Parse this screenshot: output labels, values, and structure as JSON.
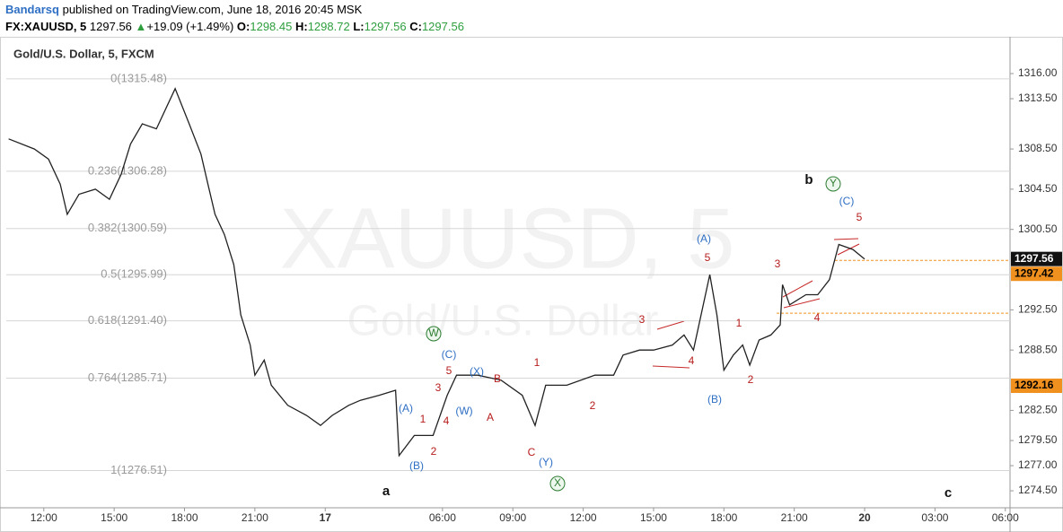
{
  "header": {
    "publisher": "Bandarsq",
    "published": "published on TradingView.com, June 18, 2016 20:45 MSK",
    "symbol": "FX:XAUUSD, 5",
    "last": 1297.56,
    "change": "+19.09 (+1.49%)",
    "ohlc": [
      {
        "key": "O:",
        "value": 1298.45
      },
      {
        "key": "H:",
        "value": 1298.72
      },
      {
        "key": "L:",
        "value": 1297.56
      },
      {
        "key": "C:",
        "value": 1297.56
      }
    ]
  },
  "chart_data": {
    "type": "line",
    "title": "Gold/U.S. Dollar, 5, FXCM",
    "watermark": [
      "XAUUSD, 5",
      "Gold/U.S. Dollar"
    ],
    "color": "#222222",
    "x": [
      -1.5,
      -0.4,
      0.2,
      0.7,
      1,
      1.5,
      2.2,
      2.8,
      3.3,
      3.7,
      4.2,
      4.8,
      5.6,
      6.2,
      6.7,
      7,
      7.3,
      7.7,
      8.1,
      8.4,
      8.8,
      9,
      9.4,
      9.7,
      10.4,
      11.2,
      11.8,
      12.3,
      13,
      13.5,
      14.3,
      15,
      15.15,
      15.8,
      16.6,
      17.2,
      17.6,
      18.5,
      19.5,
      20.4,
      20.95,
      21.4,
      22.3,
      23.5,
      24.3,
      24.7,
      25.4,
      26,
      26.8,
      27.3,
      27.7,
      28.4,
      28.7,
      29,
      29.4,
      29.8,
      30.1,
      30.5,
      31,
      31.4,
      31.5,
      31.8,
      32.5,
      33,
      33.5,
      33.9,
      34.5,
      35
    ],
    "values": [
      1309.5,
      1308.5,
      1307.5,
      1305,
      1302,
      1304,
      1304.5,
      1303.5,
      1306,
      1309,
      1311,
      1310.5,
      1314.5,
      1311,
      1308,
      1305,
      1302,
      1300,
      1297,
      1292,
      1289,
      1286,
      1287.5,
      1285,
      1283,
      1282,
      1281,
      1282,
      1283,
      1283.5,
      1284,
      1284.5,
      1278,
      1280,
      1280,
      1284,
      1286,
      1286,
      1285.5,
      1284,
      1281,
      1285,
      1285,
      1286,
      1286,
      1288,
      1288.5,
      1288.5,
      1289,
      1290,
      1288.5,
      1296,
      1292,
      1286.5,
      1288,
      1289,
      1287,
      1289.5,
      1290,
      1291,
      1295,
      1293,
      1294,
      1294,
      1295.5,
      1299,
      1298.5,
      1297.56
    ],
    "xlim": [
      -1.6,
      41.2
    ],
    "ylim": [
      1272.9,
      1317.25
    ],
    "xticks": [
      {
        "value": 0,
        "label": "12:00"
      },
      {
        "value": 3,
        "label": "15:00"
      },
      {
        "value": 6,
        "label": "18:00"
      },
      {
        "value": 9,
        "label": "21:00"
      },
      12,
      {
        "value": 17,
        "label": "06:00"
      },
      {
        "value": 20,
        "label": "09:00"
      },
      {
        "value": 23,
        "label": "12:00"
      },
      {
        "value": 26,
        "label": "15:00"
      },
      {
        "value": 29,
        "label": "18:00"
      },
      {
        "value": 32,
        "label": "21:00"
      },
      35,
      {
        "value": 38,
        "label": "03:00"
      },
      {
        "value": 41,
        "label": "06:00"
      }
    ],
    "xtick_texts": {
      "12": "17",
      "35": "20"
    },
    "yticks": [
      {
        "value": 1316,
        "label": "1316.00"
      },
      {
        "value": 1313.5,
        "label": "1313.50"
      },
      {
        "value": 1308.5,
        "label": "1308.50"
      },
      {
        "value": 1304.5,
        "label": "1304.50"
      },
      {
        "value": 1300.5,
        "label": "1300.50"
      },
      {
        "value": 1292.5,
        "label": "1292.50"
      },
      {
        "value": 1288.5,
        "label": "1288.50"
      },
      {
        "value": 1282.5,
        "label": "1282.50"
      },
      {
        "value": 1279.5,
        "label": "1279.50"
      },
      {
        "value": 1277,
        "label": "1277.00"
      },
      {
        "value": 1274.5,
        "label": "1274.50"
      }
    ],
    "fib_levels": [
      {
        "label": "0(1315.48)",
        "value": 1315.48
      },
      {
        "label": "0.236(1306.28)",
        "value": 1306.28
      },
      {
        "label": "0.382(1300.59)",
        "value": 1300.59
      },
      {
        "label": "0.5(1295.99)",
        "value": 1295.99
      },
      {
        "label": "0.618(1291.40)",
        "value": 1291.4
      },
      {
        "label": "0.764(1285.71)",
        "value": 1285.71
      },
      {
        "label": "1(1276.51)",
        "value": 1276.51
      }
    ],
    "price_lines": [
      {
        "value": 1297.42,
        "color": "#f0901e"
      },
      {
        "value": 1292.16,
        "color": "#f0901e"
      }
    ],
    "annotations": [
      {
        "text": "(A)",
        "color": "#2f6fc4"
      },
      {
        "text": "(B)",
        "color": "#2f6fc4"
      },
      {
        "text": "(C)",
        "color": "#2f6fc4"
      },
      {
        "text": "(X)",
        "color": "#2f6fc4"
      },
      {
        "text": "(W)",
        "color": "#2f6fc4"
      },
      {
        "text": "(Y)",
        "color": "#2f6fc4"
      },
      {
        "text": "(A)",
        "color": "#2f6fc4"
      },
      {
        "text": "(B)",
        "color": "#2f6fc4"
      },
      {
        "text": "(C)",
        "color": "#2f6fc4"
      },
      {
        "text": "1",
        "color": "#b71c1c"
      },
      {
        "text": "2",
        "color": "#b71c1c"
      },
      {
        "text": "3",
        "color": "#b71c1c"
      },
      {
        "text": "4",
        "color": "#b71c1c"
      },
      {
        "text": "5",
        "color": "#b71c1c"
      },
      {
        "text": "B",
        "color": "#b71c1c"
      },
      {
        "text": "A",
        "color": "#b71c1c"
      },
      {
        "text": "C",
        "color": "#b71c1c"
      },
      {
        "text": "1",
        "color": "#b71c1c"
      },
      {
        "text": "2",
        "color": "#b71c1c"
      },
      {
        "text": "3",
        "color": "#b71c1c"
      },
      {
        "text": "4",
        "color": "#b71c1c"
      },
      {
        "text": "5",
        "color": "#b71c1c"
      },
      {
        "text": "1",
        "color": "#b71c1c"
      },
      {
        "text": "2",
        "color": "#b71c1c"
      },
      {
        "text": "3",
        "color": "#b71c1c"
      },
      {
        "text": "4",
        "color": "#b71c1c"
      },
      {
        "text": "5",
        "color": "#b71c1c"
      },
      {
        "text": "a",
        "color": "#111111"
      },
      {
        "text": "b",
        "color": "#111111"
      },
      {
        "text": "c",
        "color": "#111111"
      },
      {
        "text": "W",
        "color": "#2e7d32"
      },
      {
        "text": "X",
        "color": "#2e7d32"
      },
      {
        "text": "Y",
        "color": "#2e7d32"
      }
    ]
  }
}
